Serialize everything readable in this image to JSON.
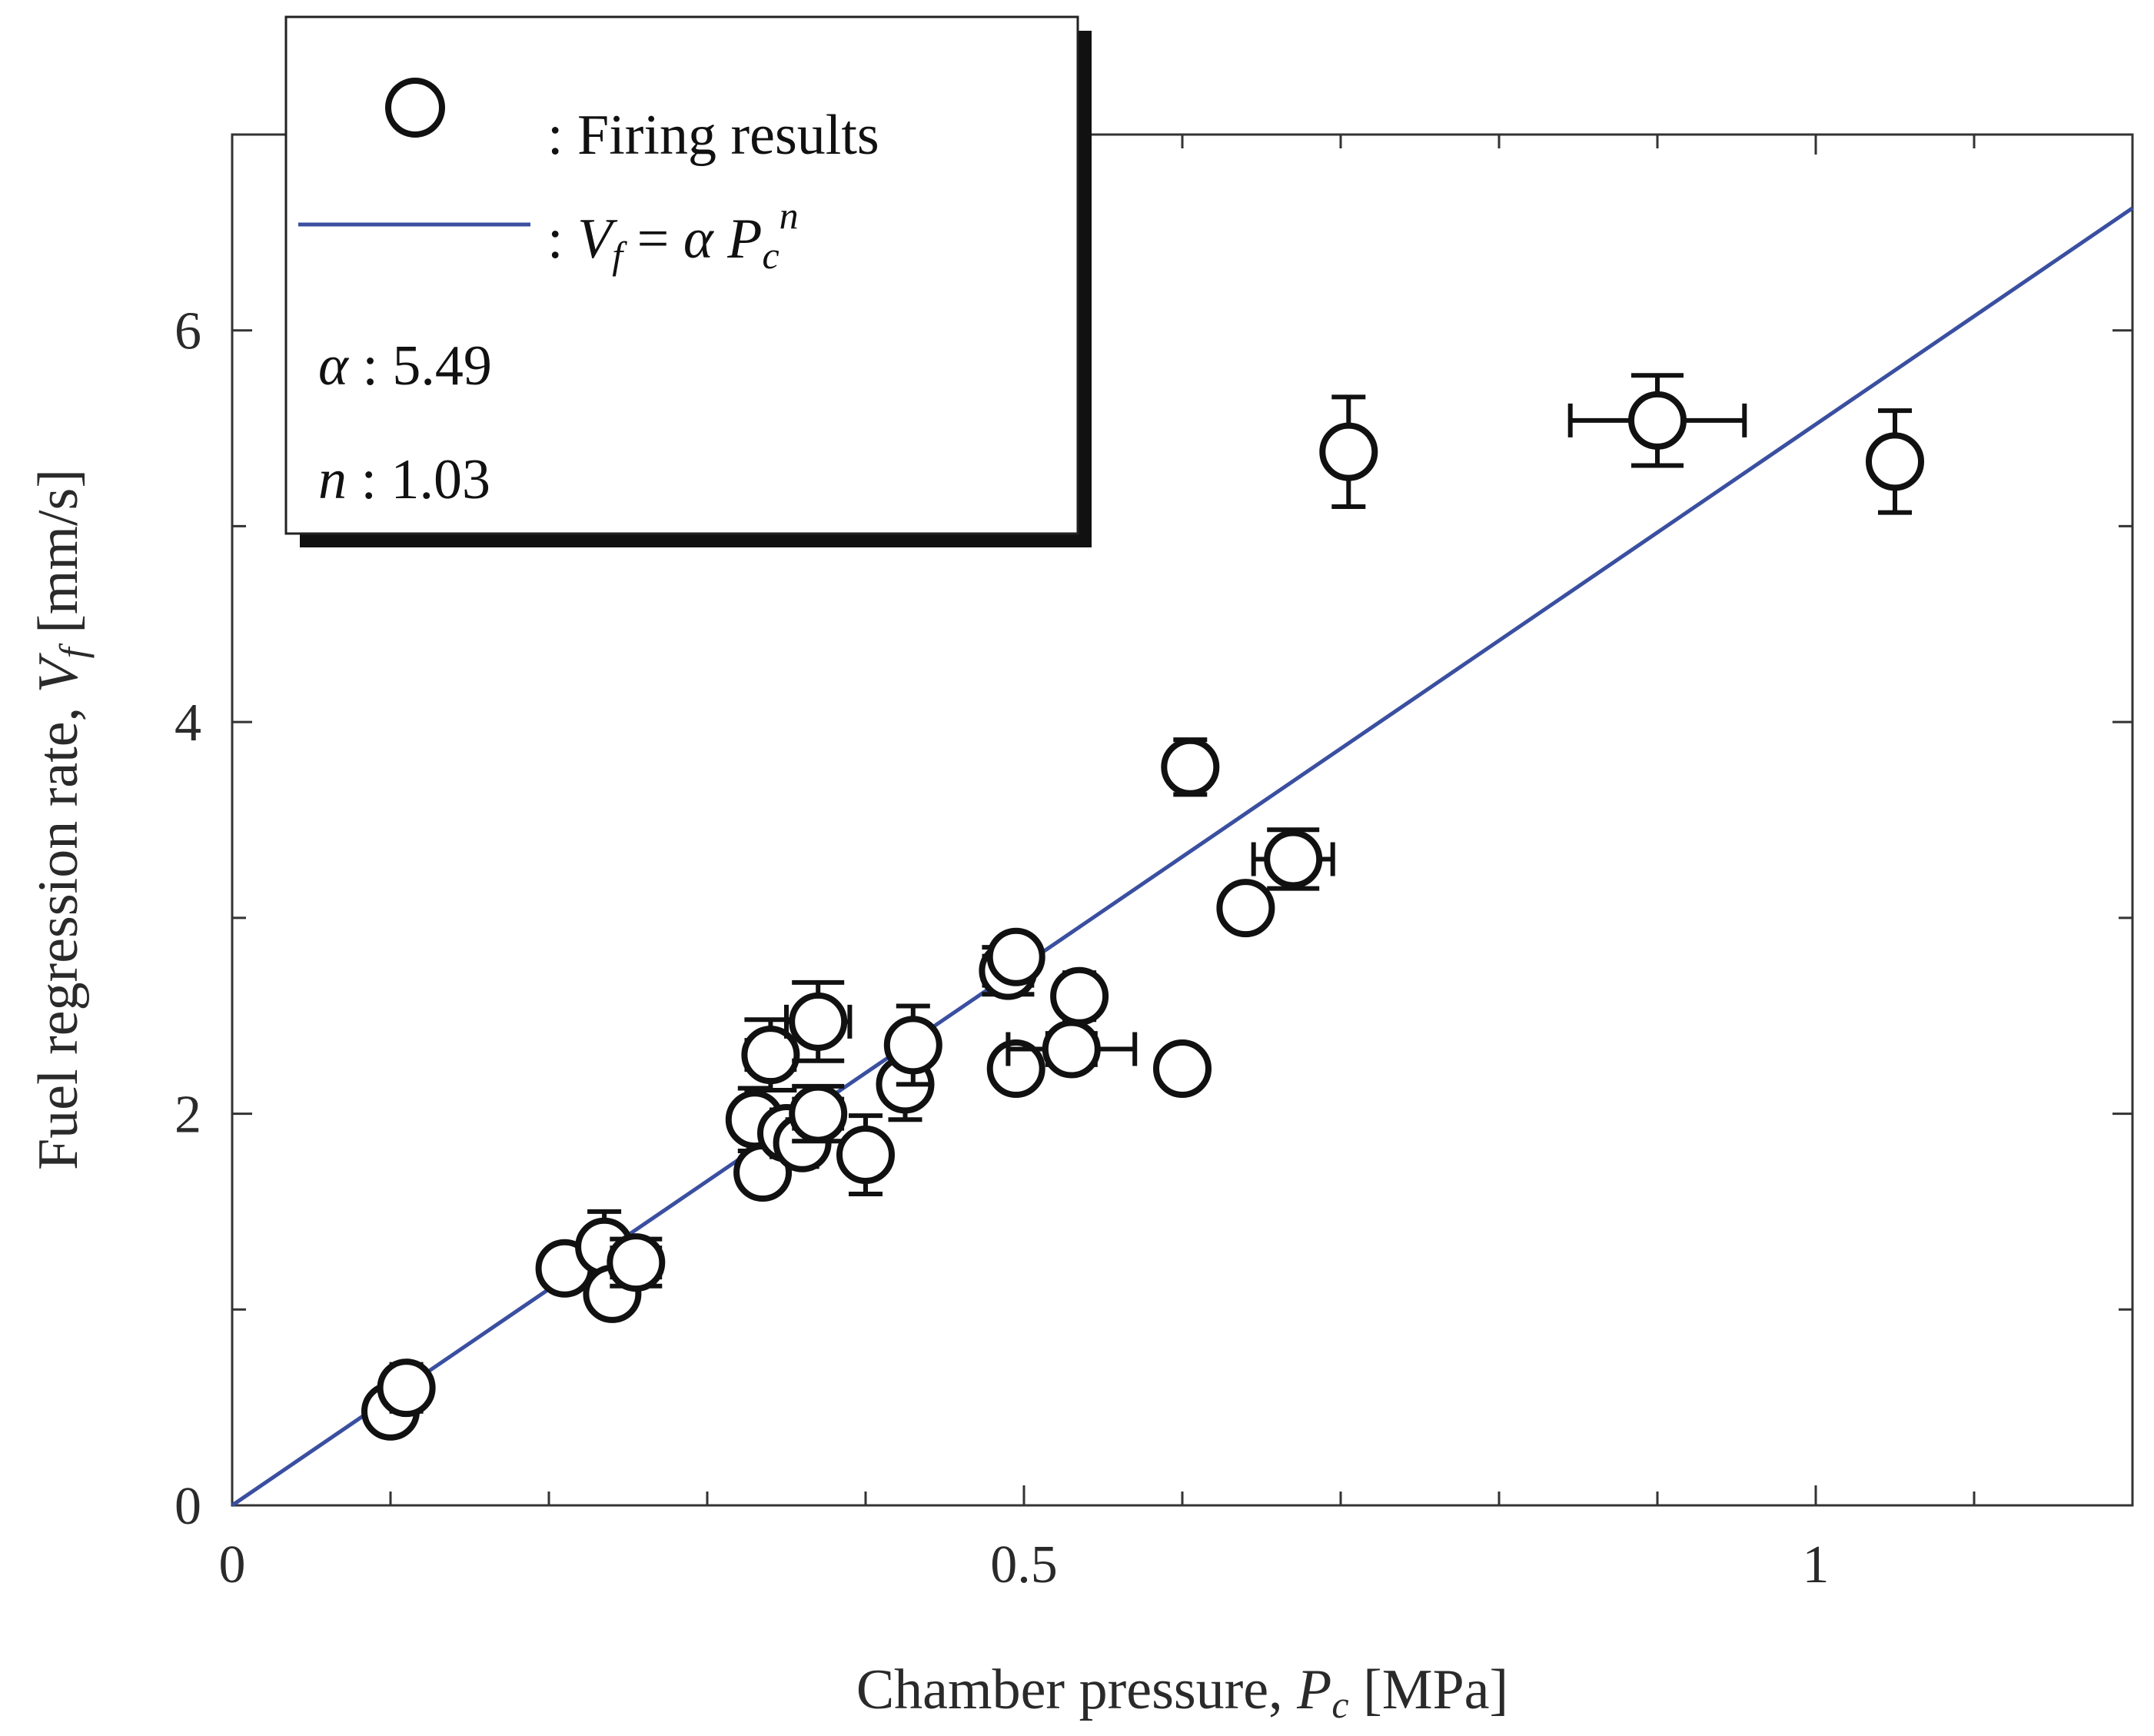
{
  "chart_data": {
    "type": "scatter",
    "xlabel": {
      "text": "Chamber pressure, ",
      "var": "P",
      "sub": "c",
      "unit": " [MPa]"
    },
    "ylabel": {
      "text": "Fuel regression rate, ",
      "var": "V",
      "sub": "f",
      "unit": " [mm/s]"
    },
    "xlim": [
      0,
      1.2
    ],
    "ylim": [
      0,
      7
    ],
    "xticks_labeled": [
      {
        "value": 0,
        "label": "0"
      },
      {
        "value": 0.5,
        "label": "0.5"
      },
      {
        "value": 1,
        "label": "1"
      }
    ],
    "xticks_minor": [
      0.1,
      0.2,
      0.3,
      0.4,
      0.6,
      0.7,
      0.8,
      0.9,
      1.1
    ],
    "yticks_labeled": [
      {
        "value": 0,
        "label": "0"
      },
      {
        "value": 2,
        "label": "2"
      },
      {
        "value": 4,
        "label": "4"
      },
      {
        "value": 6,
        "label": "6"
      }
    ],
    "yticks_minor": [
      1,
      3,
      5
    ],
    "grid": false,
    "series": [
      {
        "name": "Firing results",
        "marker": "open-circle",
        "points": [
          {
            "x": 0.1,
            "y": 0.48,
            "yerr": 0.08,
            "xerr": 0.0
          },
          {
            "x": 0.11,
            "y": 0.6,
            "yerr": 0.12,
            "xerr": 0.0
          },
          {
            "x": 0.21,
            "y": 1.21,
            "yerr": 0.08,
            "xerr": 0.0
          },
          {
            "x": 0.235,
            "y": 1.32,
            "yerr": 0.18,
            "xerr": 0.0
          },
          {
            "x": 0.24,
            "y": 1.08,
            "yerr": 0.08,
            "xerr": 0.0
          },
          {
            "x": 0.255,
            "y": 1.24,
            "yerr": 0.12,
            "xerr": 0.015
          },
          {
            "x": 0.33,
            "y": 1.97,
            "yerr": 0.16,
            "xerr": 0.0
          },
          {
            "x": 0.335,
            "y": 1.7,
            "yerr": 0.1,
            "xerr": 0.0
          },
          {
            "x": 0.34,
            "y": 2.3,
            "yerr": 0.18,
            "xerr": 0.015
          },
          {
            "x": 0.35,
            "y": 1.9,
            "yerr": 0.12,
            "xerr": 0.0
          },
          {
            "x": 0.36,
            "y": 1.85,
            "yerr": 0.12,
            "xerr": 0.0
          },
          {
            "x": 0.37,
            "y": 2.0,
            "yerr": 0.14,
            "xerr": 0.015
          },
          {
            "x": 0.37,
            "y": 2.47,
            "yerr": 0.2,
            "xerr": 0.02
          },
          {
            "x": 0.4,
            "y": 1.79,
            "yerr": 0.2,
            "xerr": 0.0
          },
          {
            "x": 0.425,
            "y": 2.15,
            "yerr": 0.18,
            "xerr": 0.0
          },
          {
            "x": 0.43,
            "y": 2.35,
            "yerr": 0.2,
            "xerr": 0.0
          },
          {
            "x": 0.49,
            "y": 2.73,
            "yerr": 0.12,
            "xerr": 0.015
          },
          {
            "x": 0.495,
            "y": 2.8,
            "yerr": 0.08,
            "xerr": 0.0
          },
          {
            "x": 0.495,
            "y": 2.23,
            "yerr": 0.1,
            "xerr": 0.0
          },
          {
            "x": 0.53,
            "y": 2.33,
            "yerr": 0.08,
            "xerr": 0.04
          },
          {
            "x": 0.535,
            "y": 2.6,
            "yerr": 0.12,
            "xerr": 0.0
          },
          {
            "x": 0.6,
            "y": 2.23,
            "yerr": 0.1,
            "xerr": 0.0
          },
          {
            "x": 0.605,
            "y": 3.77,
            "yerr": 0.14,
            "xerr": 0.0
          },
          {
            "x": 0.64,
            "y": 3.05,
            "yerr": 0.08,
            "xerr": 0.0
          },
          {
            "x": 0.67,
            "y": 3.3,
            "yerr": 0.15,
            "xerr": 0.025
          },
          {
            "x": 0.705,
            "y": 5.38,
            "yerr": 0.28,
            "xerr": 0.0
          },
          {
            "x": 0.9,
            "y": 5.54,
            "yerr": 0.23,
            "xerr": 0.055
          },
          {
            "x": 1.05,
            "y": 5.33,
            "yerr": 0.26,
            "xerr": 0.0
          }
        ]
      },
      {
        "name": "fit",
        "type": "line",
        "equation": "Vf = alpha * Pc^n",
        "alpha": 5.49,
        "n": 1.03,
        "x_range": [
          0,
          1.2
        ],
        "color": "#3a4fa0"
      }
    ],
    "legend": {
      "placement": "top-left",
      "entries": [
        {
          "label": ": Firing results"
        },
        {
          "label": ": ",
          "eq_V": "V",
          "eq_f": "f",
          "eq_mid": " = ",
          "eq_alpha": "α",
          "eq_P": " P",
          "eq_c": "c",
          "eq_n": "n"
        }
      ],
      "params": [
        {
          "symbol": "α",
          "text": " : 5.49"
        },
        {
          "symbol": "n",
          "text": " : 1.03"
        }
      ]
    }
  }
}
